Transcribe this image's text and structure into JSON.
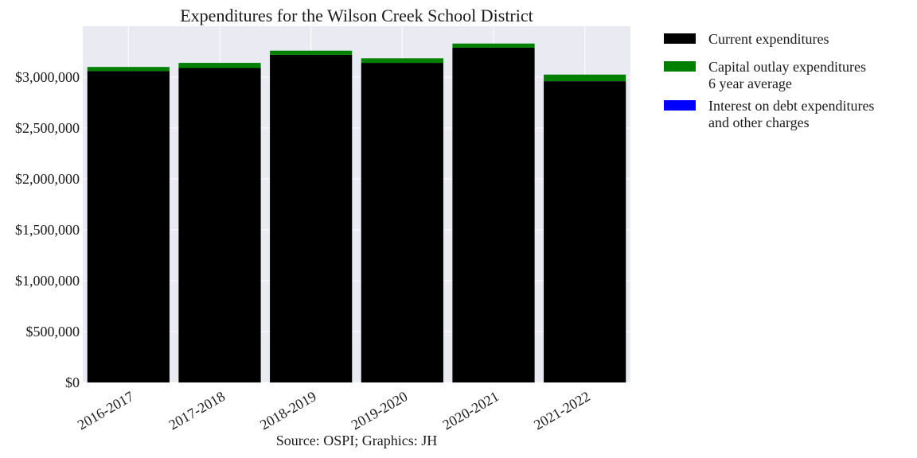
{
  "chart_data": {
    "type": "bar",
    "stacked": true,
    "title": "Expenditures for the Wilson Creek School District",
    "categories": [
      "2016-2017",
      "2017-2018",
      "2018-2019",
      "2019-2020",
      "2020-2021",
      "2021-2022"
    ],
    "series": [
      {
        "name": "Current expenditures",
        "color": "#000000",
        "values": [
          3060000,
          3090000,
          3220000,
          3140000,
          3290000,
          2960000
        ]
      },
      {
        "name": "Capital outlay expenditures\n6 year average",
        "color": "#008000",
        "values": [
          40000,
          50000,
          40000,
          45000,
          40000,
          65000
        ]
      },
      {
        "name": "Interest on debt expenditures\nand other charges",
        "color": "#0000ff",
        "values": [
          0,
          0,
          0,
          0,
          0,
          0
        ]
      }
    ],
    "ylim": [
      0,
      3500000
    ],
    "yticks": [
      0,
      500000,
      1000000,
      1500000,
      2000000,
      2500000,
      3000000
    ],
    "ytick_labels": [
      "$0",
      "$500,000",
      "$1,000,000",
      "$1,500,000",
      "$2,000,000",
      "$2,500,000",
      "$3,000,000"
    ],
    "grid": true,
    "legend_position": "outside-right-top",
    "background": "#eaeaf2",
    "source_note": "Source: OSPI; Graphics: JH"
  }
}
